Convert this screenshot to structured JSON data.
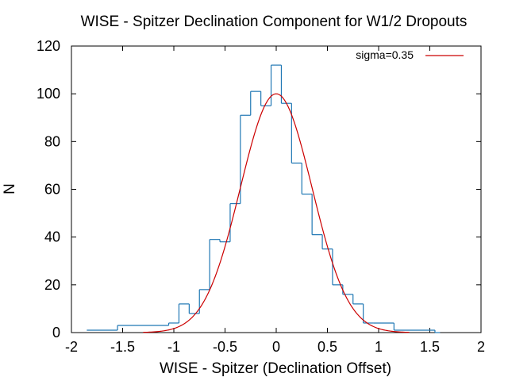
{
  "chart_data": {
    "type": "histogram",
    "title": "WISE - Spitzer Declination Component for W1/2 Dropouts",
    "xlabel": "WISE - Spitzer (Declination Offset)",
    "ylabel": "N",
    "xlim": [
      -2,
      2
    ],
    "ylim": [
      0,
      120
    ],
    "xticks": [
      "-2",
      "-1.5",
      "-1",
      "-0.5",
      "0",
      "0.5",
      "1",
      "1.5",
      "2"
    ],
    "yticks": [
      "0",
      "20",
      "40",
      "60",
      "80",
      "100",
      "120"
    ],
    "grid": false,
    "legend_position": "top-right",
    "series": [
      {
        "kind": "histogram-steps",
        "color": "#1f77b4",
        "bin_width": 0.1,
        "bins": [
          {
            "x0": -1.85,
            "x1": -1.55,
            "count": 1
          },
          {
            "x0": -1.55,
            "x1": -1.05,
            "count": 3
          },
          {
            "x0": -1.05,
            "x1": -0.95,
            "count": 4
          },
          {
            "x0": -0.95,
            "x1": -0.85,
            "count": 12
          },
          {
            "x0": -0.85,
            "x1": -0.75,
            "count": 8
          },
          {
            "x0": -0.75,
            "x1": -0.65,
            "count": 18
          },
          {
            "x0": -0.65,
            "x1": -0.55,
            "count": 39
          },
          {
            "x0": -0.55,
            "x1": -0.45,
            "count": 38
          },
          {
            "x0": -0.45,
            "x1": -0.35,
            "count": 54
          },
          {
            "x0": -0.35,
            "x1": -0.25,
            "count": 91
          },
          {
            "x0": -0.25,
            "x1": -0.15,
            "count": 101
          },
          {
            "x0": -0.15,
            "x1": -0.05,
            "count": 95
          },
          {
            "x0": -0.05,
            "x1": 0.05,
            "count": 112
          },
          {
            "x0": 0.05,
            "x1": 0.15,
            "count": 96
          },
          {
            "x0": 0.15,
            "x1": 0.25,
            "count": 71
          },
          {
            "x0": 0.25,
            "x1": 0.35,
            "count": 58
          },
          {
            "x0": 0.35,
            "x1": 0.45,
            "count": 41
          },
          {
            "x0": 0.45,
            "x1": 0.55,
            "count": 35
          },
          {
            "x0": 0.55,
            "x1": 0.65,
            "count": 20
          },
          {
            "x0": 0.65,
            "x1": 0.75,
            "count": 16
          },
          {
            "x0": 0.75,
            "x1": 0.85,
            "count": 12
          },
          {
            "x0": 0.85,
            "x1": 0.95,
            "count": 4
          },
          {
            "x0": 0.95,
            "x1": 1.15,
            "count": 4
          },
          {
            "x0": 1.15,
            "x1": 1.55,
            "count": 1
          },
          {
            "x0": 1.55,
            "x1": 1.6,
            "count": 0
          }
        ]
      },
      {
        "kind": "gaussian-fit",
        "name": "sigma=0.35",
        "color": "#cc0000",
        "amplitude": 100,
        "mean": 0,
        "sigma": 0.35,
        "x_range": [
          -1.3,
          1.3
        ]
      }
    ]
  }
}
